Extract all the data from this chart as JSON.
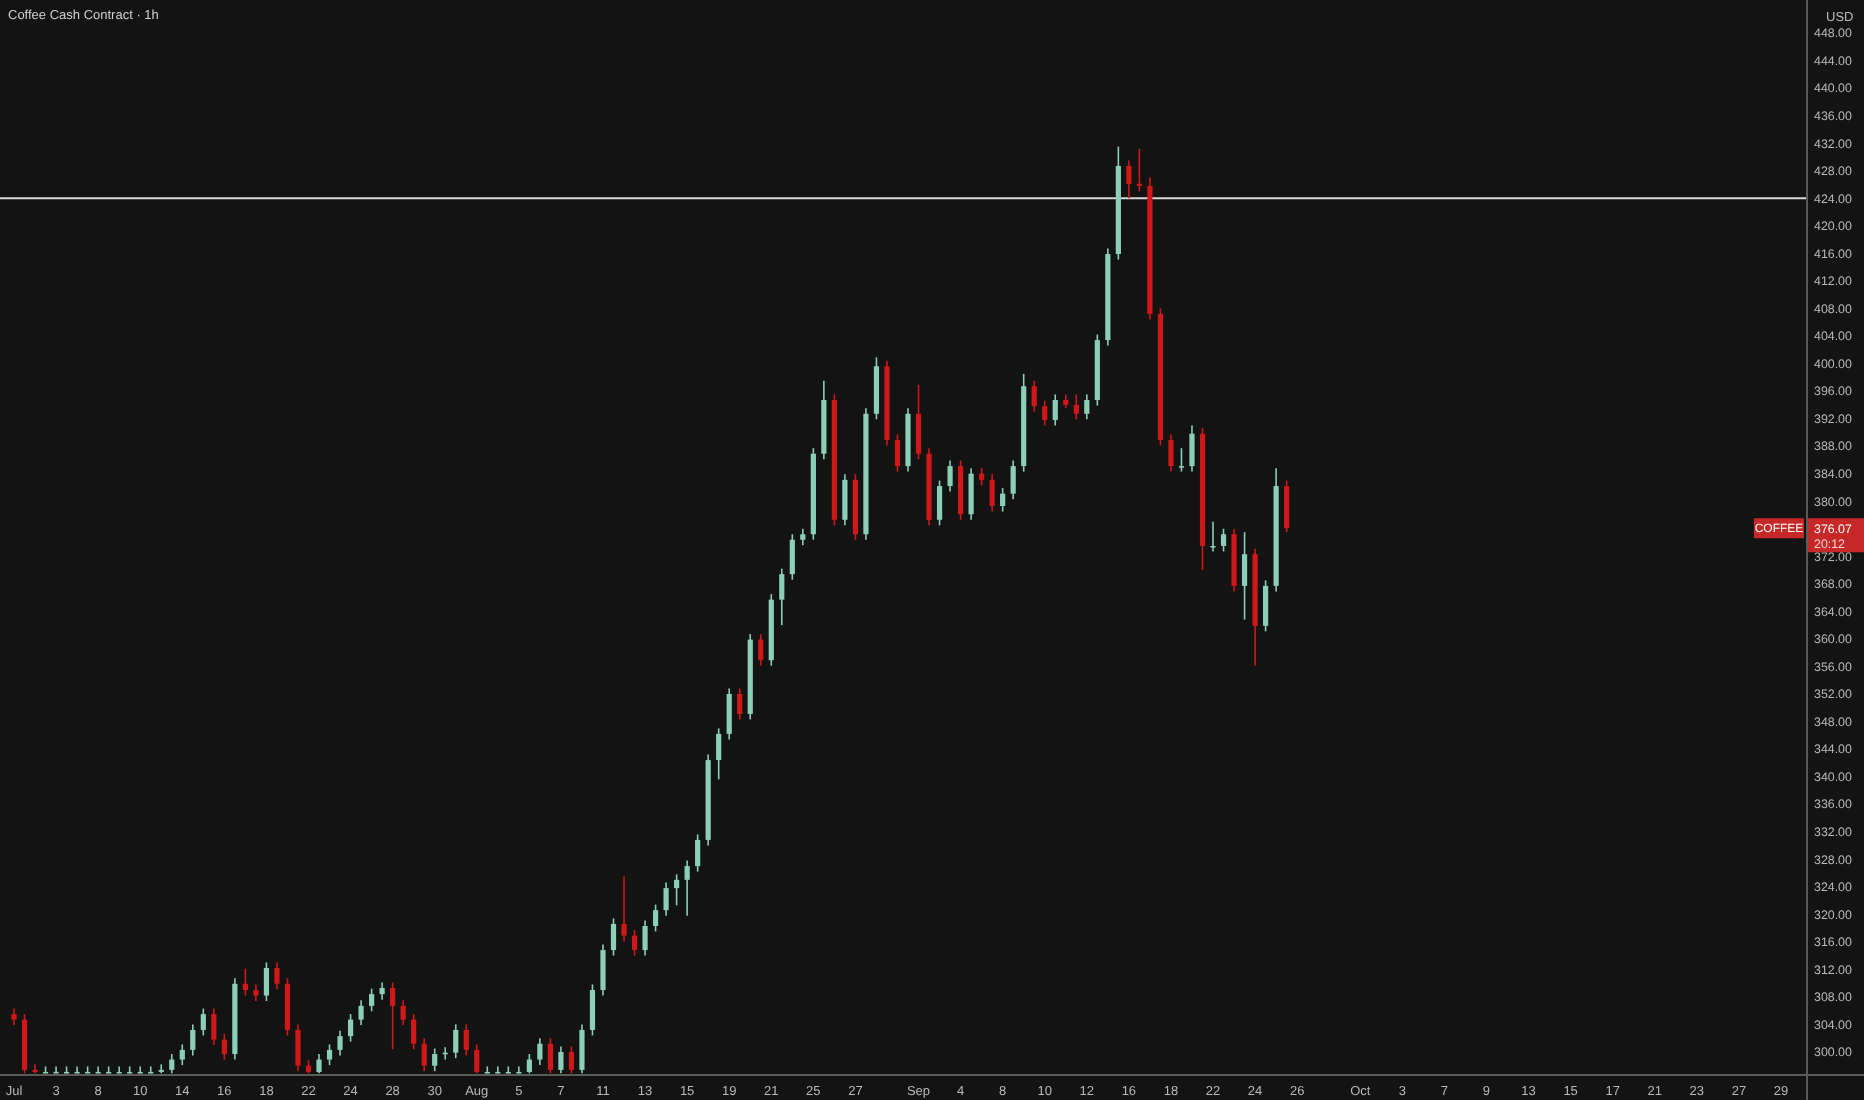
{
  "chart_data": {
    "type": "candlestick",
    "title": "Coffee Cash Contract · 1h",
    "ylabel": "USD",
    "categories": [
      "Jul",
      null,
      null,
      null,
      "3",
      null,
      null,
      null,
      "8",
      null,
      null,
      null,
      "10",
      null,
      null,
      null,
      "14",
      null,
      null,
      null,
      "16",
      null,
      null,
      null,
      "18",
      null,
      null,
      null,
      "22",
      null,
      null,
      null,
      "24",
      null,
      null,
      null,
      "28",
      null,
      null,
      null,
      "30",
      null,
      null,
      null,
      "Aug",
      null,
      null,
      null,
      "5",
      null,
      null,
      null,
      "7",
      null,
      null,
      null,
      "11",
      null,
      null,
      null,
      "13",
      null,
      null,
      null,
      "15",
      null,
      null,
      null,
      "19",
      null,
      null,
      null,
      "21",
      null,
      null,
      null,
      "25",
      null,
      null,
      null,
      "27",
      null,
      null,
      null,
      null,
      null,
      "Sep",
      null,
      null,
      null,
      "4",
      null,
      null,
      null,
      "8",
      null,
      null,
      null,
      "10",
      null,
      null,
      null,
      "12",
      null,
      null,
      null,
      "16",
      null,
      null,
      null,
      "18",
      null,
      null,
      null,
      "22",
      null,
      null,
      null,
      "24",
      null,
      null,
      null,
      "26",
      null,
      null,
      null,
      null,
      null,
      "Oct",
      null,
      null,
      null,
      "3",
      null,
      null,
      null,
      "7",
      null,
      null,
      null,
      "9",
      null,
      null,
      null,
      "13",
      null,
      null,
      null,
      "15",
      null,
      null,
      null,
      "17",
      null,
      null,
      null,
      "21",
      null,
      null,
      null,
      "23",
      null,
      null,
      null,
      "27",
      null,
      null,
      null,
      "29",
      null,
      null
    ],
    "ohlc": [
      [
        305.5,
        306.3,
        303.9,
        304.7
      ],
      [
        304.7,
        305.5,
        296.9,
        297.4
      ],
      [
        297.4,
        298.2,
        296.9,
        297.1
      ],
      [
        297.1,
        297.9,
        296.9,
        297.1
      ],
      [
        297.1,
        297.9,
        296.9,
        297.1
      ],
      [
        297.1,
        297.9,
        296.9,
        297.1
      ],
      [
        297.1,
        297.9,
        296.9,
        297.1
      ],
      [
        297.1,
        297.9,
        296.9,
        297.1
      ],
      [
        297.1,
        297.9,
        296.9,
        297.1
      ],
      [
        297.1,
        297.9,
        296.9,
        297.1
      ],
      [
        297.1,
        297.9,
        296.9,
        297.1
      ],
      [
        297.1,
        297.9,
        296.9,
        297.1
      ],
      [
        297.1,
        297.9,
        296.9,
        297.1
      ],
      [
        297.1,
        297.9,
        296.9,
        297.1
      ],
      [
        297.1,
        298.2,
        296.9,
        297.4
      ],
      [
        297.4,
        299.7,
        296.9,
        298.9
      ],
      [
        298.9,
        301.1,
        298.1,
        300.3
      ],
      [
        300.3,
        304.0,
        299.5,
        303.2
      ],
      [
        303.2,
        306.3,
        302.4,
        305.5
      ],
      [
        305.5,
        306.3,
        301.0,
        301.8
      ],
      [
        301.8,
        302.6,
        298.9,
        299.7
      ],
      [
        299.7,
        310.7,
        298.9,
        309.9
      ],
      [
        309.9,
        312.1,
        308.2,
        309.0
      ],
      [
        309.0,
        309.8,
        307.4,
        308.2
      ],
      [
        308.2,
        313.0,
        307.4,
        312.2
      ],
      [
        312.2,
        313.0,
        309.1,
        309.9
      ],
      [
        309.9,
        310.7,
        302.4,
        303.2
      ],
      [
        303.2,
        304.0,
        297.2,
        298.0
      ],
      [
        298.0,
        298.8,
        296.9,
        297.1
      ],
      [
        297.1,
        299.7,
        296.9,
        298.9
      ],
      [
        298.9,
        301.1,
        298.1,
        300.3
      ],
      [
        300.3,
        303.1,
        299.5,
        302.3
      ],
      [
        302.3,
        305.5,
        301.5,
        304.7
      ],
      [
        304.7,
        307.5,
        303.9,
        306.7
      ],
      [
        306.7,
        309.2,
        305.9,
        308.4
      ],
      [
        308.4,
        310.1,
        307.6,
        309.3
      ],
      [
        309.3,
        310.1,
        300.4,
        306.7
      ],
      [
        306.7,
        307.5,
        303.9,
        304.7
      ],
      [
        304.7,
        305.5,
        300.4,
        301.2
      ],
      [
        301.2,
        302.0,
        297.2,
        298.0
      ],
      [
        298.0,
        300.5,
        297.2,
        299.7
      ],
      [
        299.7,
        300.7,
        298.9,
        299.9
      ],
      [
        299.9,
        304.0,
        299.1,
        303.2
      ],
      [
        303.2,
        304.0,
        299.5,
        300.3
      ],
      [
        300.3,
        301.1,
        296.9,
        297.1
      ],
      [
        297.1,
        297.9,
        296.9,
        297.1
      ],
      [
        297.1,
        297.9,
        296.9,
        297.1
      ],
      [
        297.1,
        297.9,
        296.9,
        297.1
      ],
      [
        297.1,
        297.9,
        296.9,
        297.1
      ],
      [
        297.1,
        299.7,
        296.9,
        298.9
      ],
      [
        298.9,
        302.0,
        298.1,
        301.2
      ],
      [
        301.2,
        302.0,
        296.9,
        297.4
      ],
      [
        297.4,
        300.8,
        296.9,
        300.0
      ],
      [
        300.0,
        300.8,
        296.9,
        297.4
      ],
      [
        297.4,
        304.0,
        296.9,
        303.2
      ],
      [
        303.2,
        309.8,
        302.4,
        309.0
      ],
      [
        309.0,
        315.6,
        308.2,
        314.8
      ],
      [
        314.8,
        319.4,
        314.0,
        318.6
      ],
      [
        318.6,
        325.5,
        316.1,
        316.9
      ],
      [
        316.9,
        317.7,
        314.0,
        314.8
      ],
      [
        314.8,
        319.1,
        314.0,
        318.3
      ],
      [
        318.3,
        321.4,
        317.5,
        320.6
      ],
      [
        320.6,
        324.6,
        319.8,
        323.8
      ],
      [
        323.8,
        325.8,
        321.3,
        325.0
      ],
      [
        325.0,
        327.8,
        319.8,
        327.0
      ],
      [
        327.0,
        331.6,
        326.2,
        330.8
      ],
      [
        330.8,
        343.2,
        330.0,
        342.4
      ],
      [
        342.4,
        347.0,
        339.6,
        346.2
      ],
      [
        346.2,
        352.8,
        345.4,
        352.0
      ],
      [
        352.0,
        352.8,
        348.3,
        349.1
      ],
      [
        349.1,
        360.7,
        348.3,
        359.9
      ],
      [
        359.9,
        360.7,
        356.1,
        356.9
      ],
      [
        356.9,
        366.5,
        356.1,
        365.7
      ],
      [
        365.7,
        370.2,
        362.0,
        369.4
      ],
      [
        369.4,
        375.2,
        368.6,
        374.4
      ],
      [
        374.4,
        376.0,
        373.6,
        375.2
      ],
      [
        375.2,
        387.7,
        374.4,
        386.9
      ],
      [
        386.9,
        397.5,
        386.1,
        394.7
      ],
      [
        394.7,
        395.5,
        376.5,
        377.3
      ],
      [
        377.3,
        383.9,
        376.5,
        383.1
      ],
      [
        383.1,
        383.9,
        374.4,
        375.2
      ],
      [
        375.2,
        393.5,
        374.4,
        392.7
      ],
      [
        392.7,
        400.9,
        391.9,
        399.6
      ],
      [
        399.6,
        400.4,
        388.1,
        388.9
      ],
      [
        388.9,
        389.7,
        384.3,
        385.1
      ],
      [
        385.1,
        393.5,
        384.3,
        392.7
      ],
      [
        392.7,
        396.9,
        386.1,
        386.9
      ],
      [
        386.9,
        387.7,
        376.5,
        377.3
      ],
      [
        377.3,
        383.0,
        376.5,
        382.2
      ],
      [
        382.2,
        385.9,
        381.4,
        385.1
      ],
      [
        385.1,
        385.9,
        377.3,
        378.1
      ],
      [
        378.1,
        384.8,
        377.3,
        384.0
      ],
      [
        384.0,
        384.8,
        382.3,
        383.1
      ],
      [
        383.1,
        383.9,
        378.5,
        379.3
      ],
      [
        379.3,
        381.9,
        378.5,
        381.1
      ],
      [
        381.1,
        385.9,
        380.3,
        385.1
      ],
      [
        385.1,
        398.5,
        384.3,
        396.7
      ],
      [
        396.7,
        397.5,
        393.0,
        393.8
      ],
      [
        393.8,
        394.6,
        391.0,
        391.8
      ],
      [
        391.8,
        395.5,
        391.0,
        394.7
      ],
      [
        394.7,
        395.5,
        393.5,
        394.0
      ],
      [
        394.0,
        395.5,
        391.9,
        392.7
      ],
      [
        392.7,
        395.5,
        391.9,
        394.7
      ],
      [
        394.7,
        404.2,
        393.9,
        403.4
      ],
      [
        403.4,
        416.7,
        402.6,
        415.9
      ],
      [
        415.9,
        431.5,
        415.1,
        428.7
      ],
      [
        428.7,
        429.5,
        424.0,
        426.1
      ],
      [
        426.1,
        431.2,
        425.0,
        425.8
      ],
      [
        425.8,
        427.0,
        406.4,
        407.2
      ],
      [
        407.2,
        408.0,
        388.1,
        388.9
      ],
      [
        388.9,
        389.7,
        384.3,
        385.1
      ],
      [
        385.1,
        387.7,
        384.3,
        385.1
      ],
      [
        385.1,
        391.0,
        384.3,
        389.8
      ],
      [
        389.8,
        390.6,
        370.0,
        373.5
      ],
      [
        373.5,
        377.0,
        372.7,
        373.5
      ],
      [
        373.5,
        376.0,
        372.7,
        375.2
      ],
      [
        375.2,
        376.0,
        366.9,
        367.7
      ],
      [
        367.7,
        375.5,
        362.8,
        372.3
      ],
      [
        372.3,
        373.1,
        356.1,
        361.9
      ],
      [
        361.9,
        368.5,
        361.1,
        367.7
      ],
      [
        367.7,
        384.8,
        366.9,
        382.2
      ],
      [
        382.2,
        383.0,
        375.5,
        376.07
      ],
      null,
      null,
      null,
      null,
      null,
      null,
      null,
      null,
      null,
      null,
      null,
      null,
      null,
      null,
      null,
      null,
      null,
      null,
      null,
      null,
      null,
      null,
      null,
      null,
      null,
      null,
      null,
      null,
      null,
      null,
      null,
      null,
      null,
      null,
      null,
      null,
      null,
      null,
      null,
      null,
      null,
      null,
      null,
      null,
      null,
      null,
      null,
      null,
      null
    ],
    "colors": [
      "#d01818",
      "#d01818",
      "#d01818",
      "#8ccfb8",
      "#8ccfb8",
      "#8ccfb8",
      "#8ccfb8",
      "#8ccfb8",
      "#8ccfb8",
      "#8ccfb8",
      "#8ccfb8",
      "#8ccfb8",
      "#8ccfb8",
      "#8ccfb8",
      "#8ccfb8",
      "#8ccfb8",
      "#8ccfb8",
      "#8ccfb8",
      "#8ccfb8",
      "#d01818",
      "#d01818",
      "#8ccfb8",
      "#d01818",
      "#d01818",
      "#8ccfb8",
      "#d01818",
      "#d01818",
      "#d01818",
      "#d01818",
      "#8ccfb8",
      "#8ccfb8",
      "#8ccfb8",
      "#8ccfb8",
      "#8ccfb8",
      "#8ccfb8",
      "#8ccfb8",
      "#d01818",
      "#d01818",
      "#d01818",
      "#d01818",
      "#8ccfb8",
      "#8ccfb8",
      "#8ccfb8",
      "#d01818",
      "#d01818",
      "#8ccfb8",
      "#8ccfb8",
      "#8ccfb8",
      "#8ccfb8",
      "#8ccfb8",
      "#8ccfb8",
      "#d01818",
      "#8ccfb8",
      "#d01818",
      "#8ccfb8",
      "#8ccfb8",
      "#8ccfb8",
      "#8ccfb8",
      "#d01818",
      "#d01818",
      "#8ccfb8",
      "#8ccfb8",
      "#8ccfb8",
      "#8ccfb8",
      "#8ccfb8",
      "#8ccfb8",
      "#8ccfb8",
      "#8ccfb8",
      "#8ccfb8",
      "#d01818",
      "#8ccfb8",
      "#d01818",
      "#8ccfb8",
      "#8ccfb8",
      "#8ccfb8",
      "#8ccfb8",
      "#8ccfb8",
      "#8ccfb8",
      "#d01818",
      "#8ccfb8",
      "#d01818",
      "#8ccfb8",
      "#8ccfb8",
      "#d01818",
      "#d01818",
      "#8ccfb8",
      "#d01818",
      "#d01818",
      "#8ccfb8",
      "#8ccfb8",
      "#d01818",
      "#8ccfb8",
      "#d01818",
      "#d01818",
      "#8ccfb8",
      "#8ccfb8",
      "#8ccfb8",
      "#d01818",
      "#d01818",
      "#8ccfb8",
      "#d01818",
      "#d01818",
      "#8ccfb8",
      "#8ccfb8",
      "#8ccfb8",
      "#8ccfb8",
      "#d01818",
      "#d01818",
      "#d01818",
      "#d01818",
      "#d01818",
      "#8ccfb8",
      "#8ccfb8",
      "#d01818",
      "#8ccfb8",
      "#8ccfb8",
      "#d01818",
      "#8ccfb8",
      "#d01818",
      "#8ccfb8",
      "#8ccfb8",
      "#d01818",
      null,
      null,
      null,
      null,
      null,
      null,
      null,
      null,
      null,
      null,
      null,
      null,
      null,
      null,
      null,
      null,
      null,
      null,
      null,
      null,
      null,
      null,
      null,
      null,
      null,
      null,
      null,
      null,
      null,
      null,
      null,
      null,
      null,
      null,
      null,
      null,
      null,
      null,
      null,
      null,
      null,
      null,
      null,
      null,
      null,
      null,
      null,
      null,
      null
    ],
    "ylim": [
      296.8,
      452.8
    ],
    "yticks": [
      {
        "value": 300,
        "label": "300.00"
      },
      {
        "value": 304,
        "label": "304.00"
      },
      {
        "value": 308,
        "label": "308.00"
      },
      {
        "value": 312,
        "label": "312.00"
      },
      {
        "value": 316,
        "label": "316.00"
      },
      {
        "value": 320,
        "label": "320.00"
      },
      {
        "value": 324,
        "label": "324.00"
      },
      {
        "value": 328,
        "label": "328.00"
      },
      {
        "value": 332,
        "label": "332.00"
      },
      {
        "value": 336,
        "label": "336.00"
      },
      {
        "value": 340,
        "label": "340.00"
      },
      {
        "value": 344,
        "label": "344.00"
      },
      {
        "value": 348,
        "label": "348.00"
      },
      {
        "value": 352,
        "label": "352.00"
      },
      {
        "value": 356,
        "label": "356.00"
      },
      {
        "value": 360,
        "label": "360.00"
      },
      {
        "value": 364,
        "label": "364.00"
      },
      {
        "value": 368,
        "label": "368.00"
      },
      {
        "value": 372,
        "label": "372.00"
      },
      {
        "value": 380,
        "label": "380.00"
      },
      {
        "value": 384,
        "label": "384.00"
      },
      {
        "value": 388,
        "label": "388.00"
      },
      {
        "value": 392,
        "label": "392.00"
      },
      {
        "value": 396,
        "label": "396.00"
      },
      {
        "value": 400,
        "label": "400.00"
      },
      {
        "value": 404,
        "label": "404.00"
      },
      {
        "value": 408,
        "label": "408.00"
      },
      {
        "value": 412,
        "label": "412.00"
      },
      {
        "value": 416,
        "label": "416.00"
      },
      {
        "value": 420,
        "label": "420.00"
      },
      {
        "value": 424,
        "label": "424.00"
      },
      {
        "value": 428,
        "label": "428.00"
      },
      {
        "value": 432,
        "label": "432.00"
      },
      {
        "value": 436,
        "label": "436.00"
      },
      {
        "value": 440,
        "label": "440.00"
      },
      {
        "value": 444,
        "label": "444.00"
      },
      {
        "value": 448,
        "label": "448.00"
      }
    ],
    "ref_lines": [
      {
        "axis": "y",
        "value": 424,
        "color": "#d8d8d8"
      }
    ],
    "annotations": [
      "COFFEE",
      "376.07",
      "20:12"
    ],
    "grid": false
  }
}
